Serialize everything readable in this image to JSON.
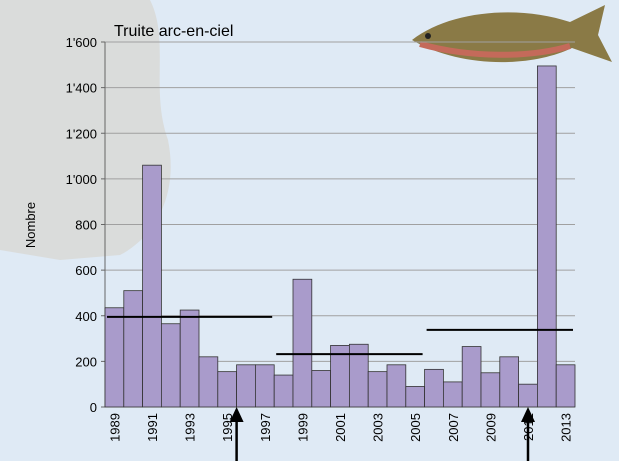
{
  "chart_data": {
    "type": "bar",
    "title": "Truite arc-en-ciel",
    "y_label": "Nombre",
    "categories": [
      "1989",
      null,
      "1991",
      null,
      "1993",
      null,
      "1995",
      null,
      "1997",
      null,
      "1999",
      null,
      "2001",
      null,
      "2003",
      null,
      "2005",
      null,
      "2007",
      null,
      "2009",
      null,
      "2011",
      null,
      "2013"
    ],
    "values": [
      435,
      510,
      1060,
      365,
      425,
      220,
      155,
      185,
      185,
      140,
      560,
      160,
      270,
      275,
      155,
      185,
      90,
      165,
      110,
      265,
      150,
      220,
      100,
      1495,
      185
    ],
    "color": "#a99bcb",
    "ylim": [
      0,
      1600
    ],
    "yticks": [
      0,
      200,
      400,
      600,
      800,
      {
        "value": 1000,
        "label": "1'000"
      },
      {
        "value": 1200,
        "label": "1'200"
      },
      {
        "value": 1400,
        "label": "1'400"
      },
      {
        "value": 1600,
        "label": "1'600"
      }
    ],
    "grid": true,
    "mean_lines": [
      {
        "from": 1989,
        "to": 1997,
        "value": 395
      },
      {
        "from": 1998,
        "to": 2005,
        "value": 232
      },
      {
        "from": 2006,
        "to": 2013,
        "value": 338
      }
    ]
  }
}
